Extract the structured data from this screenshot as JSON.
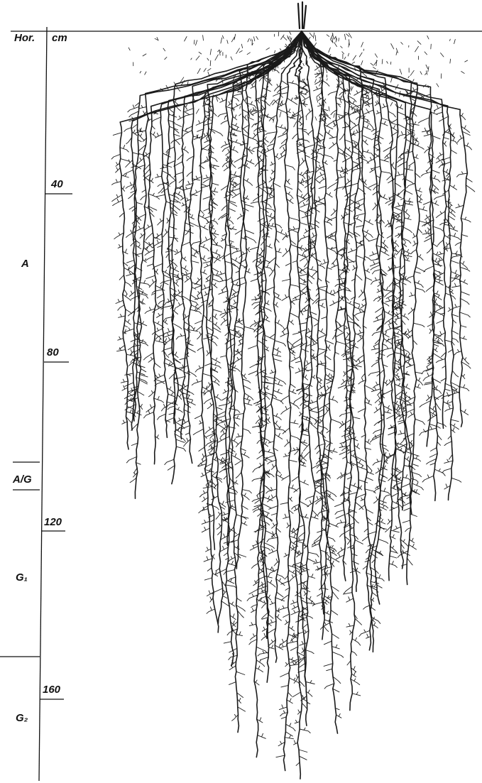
{
  "header": {
    "horizon": "Hor.",
    "unit": "cm"
  },
  "depth_ticks": [
    "40",
    "80",
    "120",
    "160"
  ],
  "horizons": [
    "A",
    "A/G",
    "G₁",
    "G₂"
  ]
}
